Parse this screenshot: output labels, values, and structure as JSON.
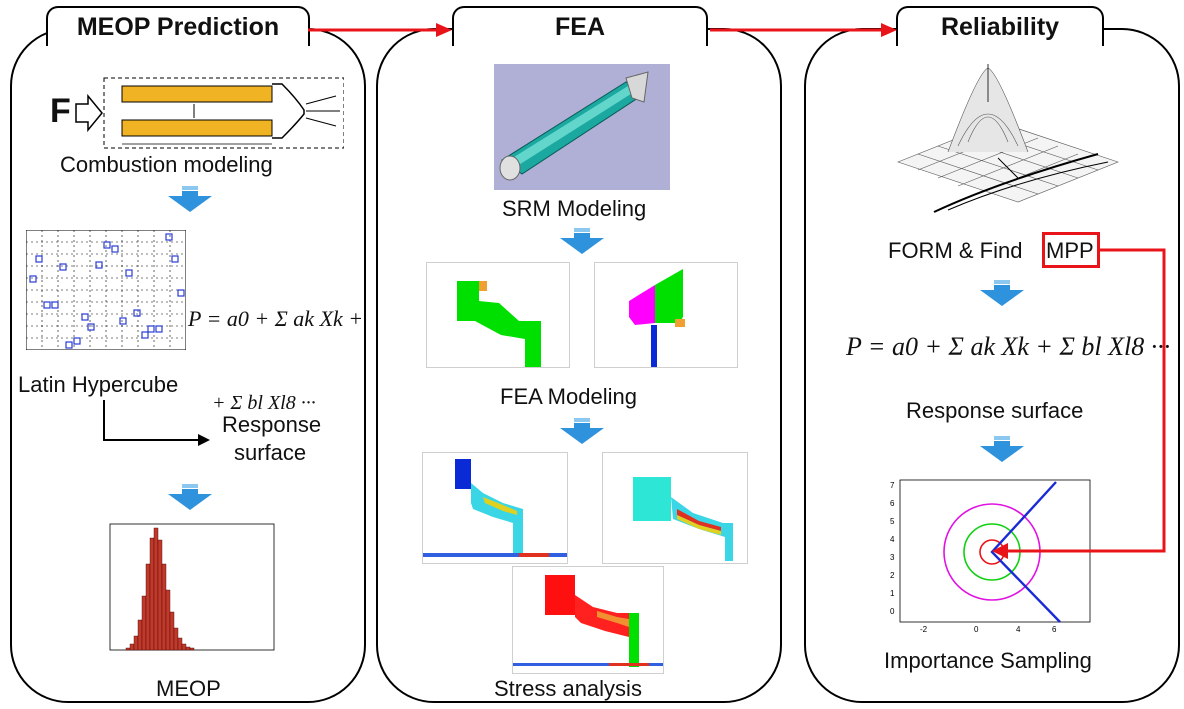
{
  "stages": {
    "meop": {
      "title": "MEOP Prediction"
    },
    "fea": {
      "title": "FEA"
    },
    "reliability": {
      "title": "Reliability"
    }
  },
  "meop_panel": {
    "force_label": "F",
    "combustion_label": "Combustion modeling",
    "latin_label": "Latin Hypercube",
    "response_label_line1": "Response",
    "response_label_line2": "surface",
    "meop_label": "MEOP",
    "equation_line1": "P = a0 + Σ ak Xk +",
    "equation_line2": "+ Σ bl Xl8 ···"
  },
  "fea_panel": {
    "srm_label": "SRM Modeling",
    "fea_modeling_label": "FEA Modeling",
    "stress_label": "Stress analysis"
  },
  "reliability_panel": {
    "form_label": "FORM & Find",
    "mpp_label": "MPP",
    "response_label": "Response surface",
    "importance_label": "Importance Sampling",
    "equation": "P = a0 + Σ ak Xk + Σ bl Xl8 ···"
  },
  "colors": {
    "flow_arrow": "#e8141a",
    "mpp_box": "#e8141a",
    "down_arrow": "#2f92dc",
    "propellant": "#f0b323",
    "fea_green": "#00e000",
    "histogram_bar": "#c0392b"
  }
}
